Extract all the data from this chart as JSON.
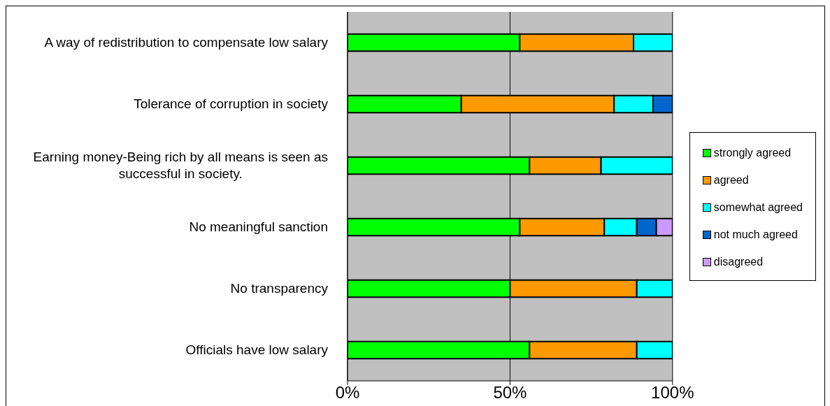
{
  "chart_data": {
    "type": "bar",
    "orientation": "horizontal",
    "stacked": true,
    "categories": [
      "A way of redistribution to compensate low salary",
      "Tolerance of corruption in society",
      "Earning money-Being rich by all means is seen as successful in society.",
      "No meaningful sanction",
      "No transparency",
      "Officials have low salary"
    ],
    "series": [
      {
        "name": "strongly agreed",
        "color": "#00ff00",
        "values": [
          53,
          35,
          56,
          53,
          50,
          56
        ]
      },
      {
        "name": "agreed",
        "color": "#ff9900",
        "values": [
          35,
          47,
          22,
          26,
          39,
          33
        ]
      },
      {
        "name": "somewhat agreed",
        "color": "#00ffff",
        "values": [
          12,
          12,
          22,
          10,
          11,
          11
        ]
      },
      {
        "name": "not much agreed",
        "color": "#0066cc",
        "values": [
          null,
          6,
          null,
          6,
          null,
          null
        ]
      },
      {
        "name": "disagreed",
        "color": "#cc99ff",
        "values": [
          null,
          null,
          null,
          5,
          null,
          null
        ]
      }
    ],
    "xlim": [
      0,
      100
    ],
    "xticks": [
      {
        "value": 0,
        "label": "0%"
      },
      {
        "value": 50,
        "label": "50%"
      },
      {
        "value": 100,
        "label": "100%"
      }
    ],
    "grid": "x",
    "legend": "right"
  }
}
